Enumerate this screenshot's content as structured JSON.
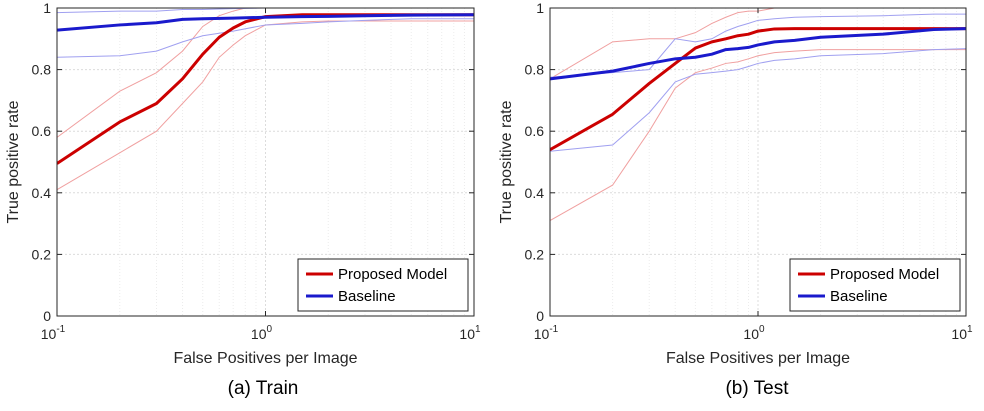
{
  "chart_data": [
    {
      "type": "line",
      "caption": "(a) Train",
      "xlabel": "False Positives per Image",
      "ylabel": "True positive rate",
      "xscale": "log",
      "xlim": [
        0.1,
        10
      ],
      "ylim": [
        0,
        1
      ],
      "grid": true,
      "legend_position": "bottom-right",
      "xticks": [
        {
          "base": "10",
          "exp": "-1",
          "value": 0.1
        },
        {
          "base": "10",
          "exp": "0",
          "value": 1
        },
        {
          "base": "10",
          "exp": "1",
          "value": 10
        }
      ],
      "yticks": [
        "0",
        "0.2",
        "0.4",
        "0.6",
        "0.8",
        "1"
      ],
      "series": [
        {
          "name": "Proposed Model",
          "color": "#cc0000",
          "x": [
            0.1,
            0.2,
            0.3,
            0.4,
            0.5,
            0.6,
            0.7,
            0.8,
            1,
            1.5,
            2,
            3,
            5,
            10
          ],
          "y": [
            0.495,
            0.63,
            0.69,
            0.77,
            0.85,
            0.905,
            0.935,
            0.955,
            0.972,
            0.978,
            0.978,
            0.978,
            0.978,
            0.978
          ],
          "upper": [
            0.58,
            0.73,
            0.79,
            0.86,
            0.94,
            0.975,
            0.99,
            1.0,
            1.0,
            1.0,
            1.0,
            1.0,
            1.0,
            1.0
          ],
          "lower": [
            0.41,
            0.53,
            0.6,
            0.69,
            0.76,
            0.84,
            0.88,
            0.91,
            0.945,
            0.955,
            0.958,
            0.958,
            0.958,
            0.958
          ]
        },
        {
          "name": "Baseline",
          "color": "#1a1acc",
          "x": [
            0.1,
            0.2,
            0.3,
            0.4,
            0.5,
            0.7,
            1,
            1.5,
            2,
            3,
            5,
            10
          ],
          "y": [
            0.928,
            0.945,
            0.952,
            0.963,
            0.965,
            0.967,
            0.97,
            0.972,
            0.973,
            0.975,
            0.977,
            0.978
          ],
          "upper": [
            0.985,
            0.99,
            0.99,
            0.995,
            0.995,
            0.998,
            1.0,
            1.0,
            1.0,
            1.0,
            1.0,
            1.0
          ],
          "lower": [
            0.84,
            0.845,
            0.86,
            0.89,
            0.91,
            0.925,
            0.945,
            0.95,
            0.955,
            0.96,
            0.965,
            0.965
          ]
        }
      ]
    },
    {
      "type": "line",
      "caption": "(b) Test",
      "xlabel": "False Positives per Image",
      "ylabel": "True positive rate",
      "xscale": "log",
      "xlim": [
        0.1,
        10
      ],
      "ylim": [
        0,
        1
      ],
      "grid": true,
      "legend_position": "bottom-right",
      "xticks": [
        {
          "base": "10",
          "exp": "-1",
          "value": 0.1
        },
        {
          "base": "10",
          "exp": "0",
          "value": 1
        },
        {
          "base": "10",
          "exp": "1",
          "value": 10
        }
      ],
      "yticks": [
        "0",
        "0.2",
        "0.4",
        "0.6",
        "0.8",
        "1"
      ],
      "series": [
        {
          "name": "Proposed Model",
          "color": "#cc0000",
          "x": [
            0.1,
            0.2,
            0.3,
            0.4,
            0.5,
            0.6,
            0.7,
            0.8,
            0.9,
            1,
            1.2,
            1.5,
            2,
            4,
            7,
            10
          ],
          "y": [
            0.54,
            0.655,
            0.755,
            0.82,
            0.87,
            0.89,
            0.9,
            0.91,
            0.915,
            0.925,
            0.932,
            0.933,
            0.933,
            0.933,
            0.933,
            0.933
          ],
          "upper": [
            0.77,
            0.89,
            0.9,
            0.9,
            0.92,
            0.95,
            0.97,
            0.985,
            0.99,
            0.99,
            1.0,
            1.0,
            1.0,
            1.0,
            1.0,
            1.0
          ],
          "lower": [
            0.31,
            0.425,
            0.6,
            0.74,
            0.79,
            0.805,
            0.82,
            0.825,
            0.835,
            0.845,
            0.855,
            0.86,
            0.865,
            0.865,
            0.865,
            0.865
          ]
        },
        {
          "name": "Baseline",
          "color": "#1a1acc",
          "x": [
            0.1,
            0.2,
            0.3,
            0.4,
            0.5,
            0.6,
            0.7,
            0.8,
            0.9,
            1,
            1.2,
            1.5,
            2,
            4,
            7,
            10
          ],
          "y": [
            0.77,
            0.795,
            0.82,
            0.835,
            0.84,
            0.85,
            0.865,
            0.868,
            0.872,
            0.88,
            0.89,
            0.895,
            0.905,
            0.915,
            0.93,
            0.933
          ],
          "upper": [
            0.775,
            0.79,
            0.8,
            0.9,
            0.89,
            0.9,
            0.925,
            0.94,
            0.95,
            0.96,
            0.965,
            0.97,
            0.972,
            0.975,
            0.98,
            0.98
          ],
          "lower": [
            0.535,
            0.555,
            0.66,
            0.76,
            0.785,
            0.79,
            0.795,
            0.8,
            0.81,
            0.82,
            0.83,
            0.835,
            0.845,
            0.852,
            0.865,
            0.868
          ]
        }
      ]
    }
  ]
}
